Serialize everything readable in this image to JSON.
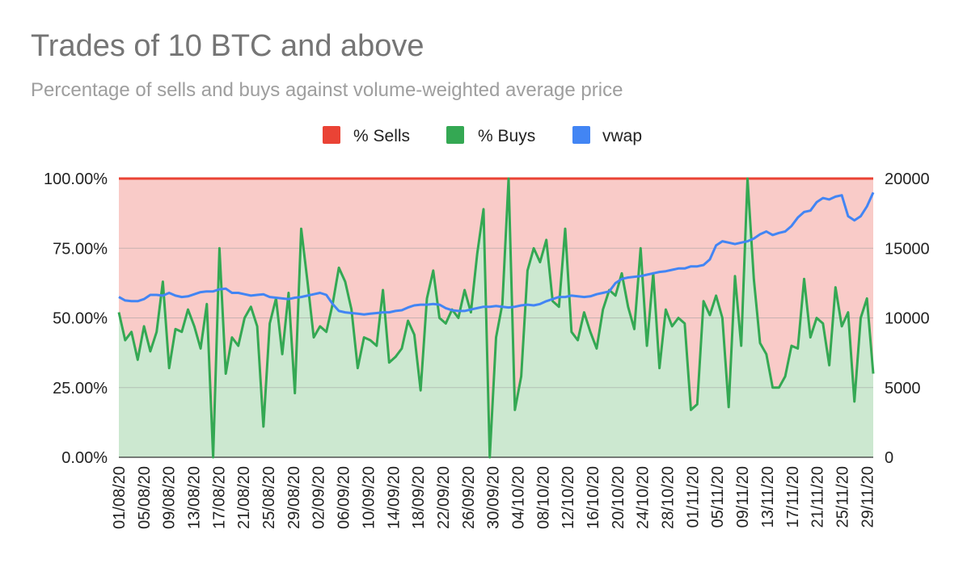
{
  "chart_data": {
    "type": "area",
    "title": "Trades of 10 BTC and above",
    "subtitle": "Percentage of sells and buys against volume-weighted average price",
    "x_tick_labels": [
      "01/08/20",
      "05/08/20",
      "09/08/20",
      "13/08/20",
      "17/08/20",
      "21/08/20",
      "25/08/20",
      "29/08/20",
      "02/09/20",
      "06/09/20",
      "10/09/20",
      "14/09/20",
      "18/09/20",
      "22/09/20",
      "26/09/20",
      "30/09/20",
      "04/10/20",
      "08/10/20",
      "12/10/20",
      "16/10/20",
      "20/10/20",
      "24/10/20",
      "28/10/20",
      "01/11/20",
      "05/11/20",
      "09/11/20",
      "13/11/20",
      "17/11/20",
      "21/11/20",
      "25/11/20",
      "29/11/20"
    ],
    "x_start": "01/08/20",
    "x_end": "30/11/20",
    "y_left": {
      "ticks": [
        "0.00%",
        "25.00%",
        "50.00%",
        "75.00%",
        "100.00%"
      ],
      "range": [
        0,
        100
      ]
    },
    "y_right": {
      "ticks": [
        "0",
        "5000",
        "10000",
        "15000",
        "20000"
      ],
      "range": [
        0,
        20000
      ]
    },
    "grid": true,
    "legend_position": "top",
    "series": [
      {
        "name": "% Sells",
        "color": "#ea4335",
        "fill": "#f9cbc8",
        "note": "stacked: 100 - % Buys"
      },
      {
        "name": "% Buys",
        "color": "#34a853",
        "fill": "#cce8d0",
        "values": [
          52,
          42,
          45,
          35,
          47,
          38,
          45,
          63,
          32,
          46,
          45,
          53,
          47,
          39,
          55,
          0,
          75,
          30,
          43,
          40,
          50,
          54,
          47,
          11,
          48,
          57,
          37,
          59,
          23,
          82,
          63,
          43,
          47,
          45,
          55,
          68,
          63,
          53,
          32,
          43,
          42,
          40,
          60,
          34,
          36,
          39,
          49,
          44,
          24,
          57,
          67,
          50,
          48,
          53,
          50,
          60,
          52,
          73,
          89,
          0,
          43,
          55,
          100,
          17,
          29,
          67,
          75,
          70,
          78,
          56,
          54,
          82,
          45,
          42,
          52,
          45,
          39,
          53,
          60,
          58,
          66,
          54,
          46,
          75,
          40,
          66,
          32,
          53,
          47,
          50,
          48,
          17,
          19,
          56,
          51,
          58,
          50,
          18,
          65,
          40,
          100,
          64,
          41,
          37,
          25,
          25,
          29,
          40,
          39,
          64,
          43,
          50,
          48,
          33,
          61,
          47,
          52,
          20,
          50,
          57,
          30
        ]
      },
      {
        "name": "vwap",
        "color": "#4285f4",
        "values": [
          11500,
          11250,
          11200,
          11200,
          11350,
          11650,
          11650,
          11600,
          11800,
          11600,
          11500,
          11550,
          11700,
          11850,
          11900,
          11900,
          12050,
          12100,
          11800,
          11800,
          11700,
          11600,
          11650,
          11700,
          11500,
          11450,
          11400,
          11350,
          11450,
          11500,
          11600,
          11700,
          11800,
          11650,
          11000,
          10500,
          10400,
          10350,
          10300,
          10250,
          10300,
          10350,
          10400,
          10400,
          10500,
          10550,
          10750,
          10900,
          10950,
          10950,
          11000,
          10950,
          10700,
          10550,
          10500,
          10500,
          10600,
          10700,
          10800,
          10800,
          10850,
          10800,
          10750,
          10800,
          10900,
          10950,
          10900,
          11000,
          11200,
          11350,
          11500,
          11500,
          11600,
          11550,
          11500,
          11550,
          11700,
          11800,
          11900,
          12500,
          12800,
          12900,
          12950,
          13000,
          13100,
          13200,
          13300,
          13350,
          13450,
          13550,
          13550,
          13700,
          13700,
          13800,
          14200,
          15200,
          15500,
          15400,
          15300,
          15400,
          15500,
          15700,
          16000,
          16200,
          15950,
          16100,
          16200,
          16600,
          17200,
          17600,
          17700,
          18300,
          18600,
          18500,
          18700,
          18800,
          17300,
          17000,
          17300,
          18000,
          19000
        ]
      }
    ]
  }
}
